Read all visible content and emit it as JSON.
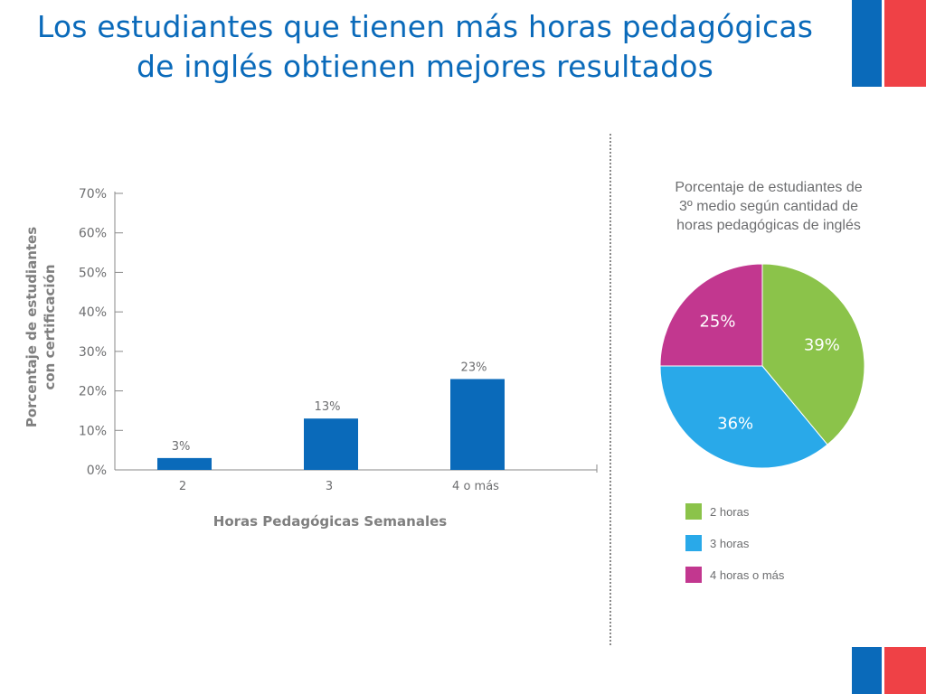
{
  "slide": {
    "title_line1": "Los estudiantes que tienen más horas pedagógicas",
    "title_line2": "de inglés obtienen mejores resultados"
  },
  "colors": {
    "brand_blue": "#0a6aba",
    "brand_red": "#ef4146",
    "bar": "#0a6aba",
    "axis_text": "#6d6e70"
  },
  "chart_data": [
    {
      "type": "bar",
      "categories": [
        "2",
        "3",
        "4 o más"
      ],
      "values": [
        3,
        13,
        23
      ],
      "data_labels": [
        "3%",
        "13%",
        "23%"
      ],
      "xlabel": "Horas Pedagógicas Semanales",
      "ylabel_line1": "Porcentaje de estudiantes",
      "ylabel_line2": "con certificación",
      "ylim": [
        0,
        70
      ],
      "yticks": [
        "0%",
        "10%",
        "20%",
        "30%",
        "40%",
        "50%",
        "60%",
        "70%"
      ],
      "grid": false,
      "bar_color": "#0a6aba"
    },
    {
      "type": "pie",
      "title_line1": "Porcentaje de estudiantes de",
      "title_line2": "3º medio según cantidad de",
      "title_line3": "horas pedagógicas de inglés",
      "slices": [
        {
          "label": "2 horas",
          "value": 39,
          "display": "39%",
          "color": "#8bc34a"
        },
        {
          "label": "3 horas",
          "value": 36,
          "display": "36%",
          "color": "#29a9e9"
        },
        {
          "label": "4 horas o más",
          "value": 25,
          "display": "25%",
          "color": "#c2378f"
        }
      ],
      "legend_position": "bottom"
    }
  ]
}
